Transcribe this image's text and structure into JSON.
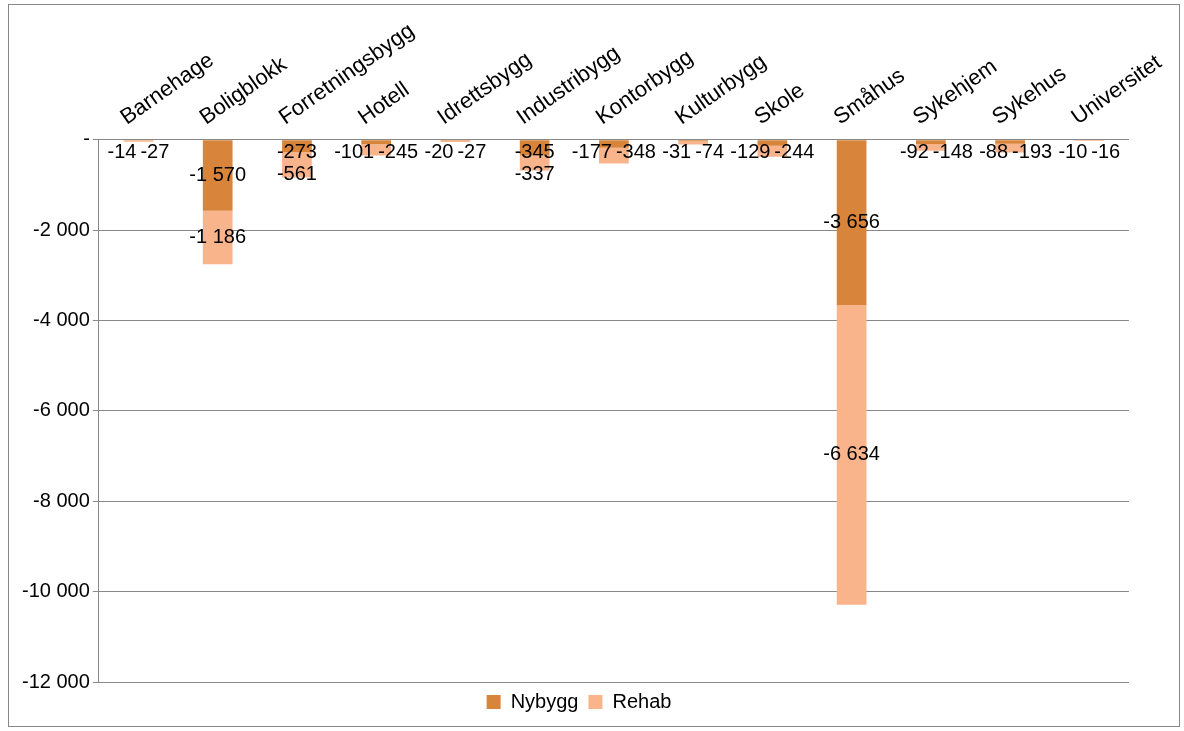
{
  "chart_data": {
    "type": "bar",
    "stacked": true,
    "categories": [
      "Barnehage",
      "Boligblokk",
      "Forretningsbygg",
      "Hotell",
      "Idrettsbygg",
      "Industribygg",
      "Kontorbygg",
      "Kulturbygg",
      "Skole",
      "Småhus",
      "Sykehjem",
      "Sykehus",
      "Universitet"
    ],
    "series": [
      {
        "name": "Nybygg",
        "color": "#d9843b",
        "values": [
          -14,
          -1570,
          -273,
          -101,
          -20,
          -345,
          -177,
          -31,
          -129,
          -3656,
          -92,
          -88,
          -10
        ],
        "value_labels": [
          "-14",
          "-1 570",
          "-273",
          "-101",
          "-20",
          "-345",
          "-177",
          "-31",
          "-129",
          "-3 656",
          "-92",
          "-88",
          "-10"
        ]
      },
      {
        "name": "Rehab",
        "color": "#f9b48c",
        "values": [
          -27,
          -1186,
          -561,
          -245,
          -27,
          -337,
          -348,
          -74,
          -244,
          -6634,
          -148,
          -193,
          -16
        ],
        "value_labels": [
          "-27",
          "-1 186",
          "-561",
          "-245",
          "-27",
          "-337",
          "-348",
          "-74",
          "-244",
          "-6 634",
          "-148",
          "-193",
          "-16"
        ]
      }
    ],
    "ylim": [
      -12000,
      0
    ],
    "yticks": [
      {
        "value": 0,
        "label": "-"
      },
      {
        "value": -2000,
        "label": "-2 000"
      },
      {
        "value": -4000,
        "label": "-4 000"
      },
      {
        "value": -6000,
        "label": "-6 000"
      },
      {
        "value": -8000,
        "label": "-8 000"
      },
      {
        "value": -10000,
        "label": "-10 000"
      },
      {
        "value": -12000,
        "label": "-12 000"
      }
    ],
    "grid": "y",
    "legend": "bottom"
  }
}
